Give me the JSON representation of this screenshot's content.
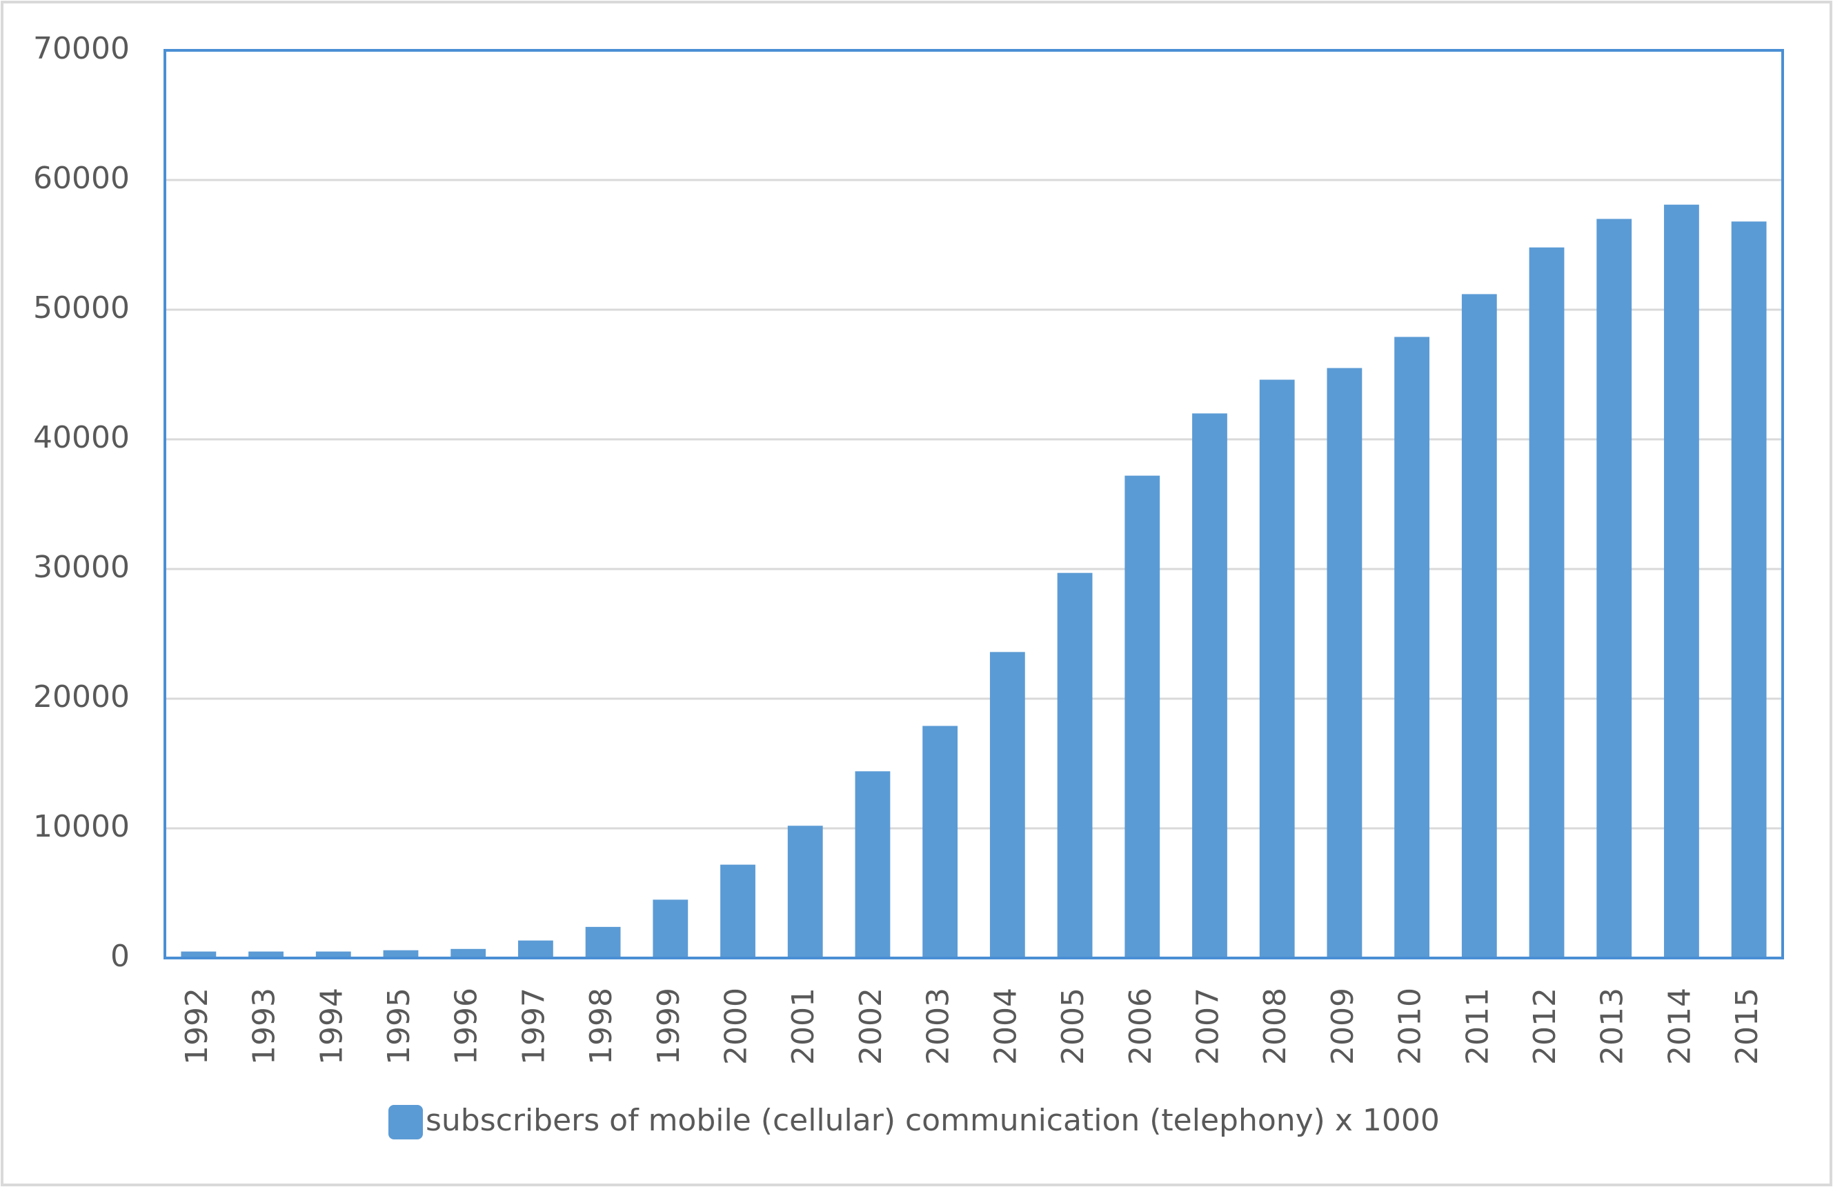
{
  "chart_data": {
    "type": "bar",
    "categories": [
      "1992",
      "1993",
      "1994",
      "1995",
      "1996",
      "1997",
      "1998",
      "1999",
      "2000",
      "2001",
      "2002",
      "2003",
      "2004",
      "2005",
      "2006",
      "2007",
      "2008",
      "2009",
      "2010",
      "2011",
      "2012",
      "2013",
      "2014",
      "2015"
    ],
    "series": [
      {
        "name": "subscribers of mobile (cellular) communication (telephony)  x 1000",
        "color": "#5b9bd5",
        "values": [
          500,
          500,
          500,
          600,
          700,
          1350,
          2400,
          4500,
          7200,
          10200,
          14400,
          17900,
          23600,
          29700,
          37200,
          42000,
          44600,
          45500,
          47900,
          51200,
          54800,
          57000,
          58100,
          56800
        ]
      }
    ],
    "ylim": [
      0,
      70000
    ],
    "yticks": [
      0,
      10000,
      20000,
      30000,
      40000,
      50000,
      60000,
      70000
    ],
    "grid": true,
    "legend": "bottom"
  }
}
